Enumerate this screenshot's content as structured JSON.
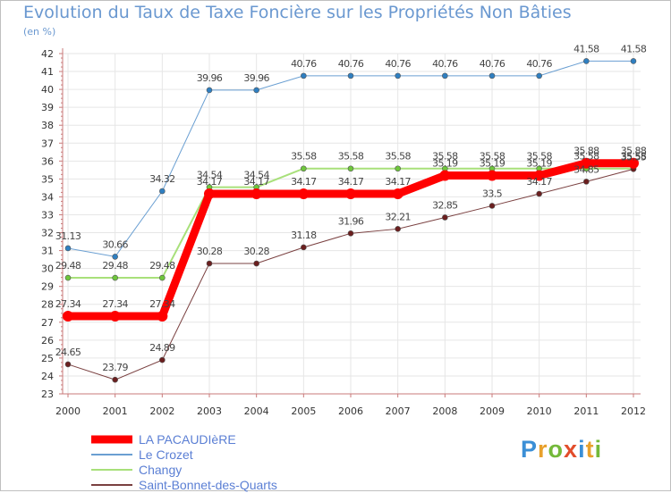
{
  "chart_data": {
    "type": "line",
    "title": "Evolution du Taux de Taxe Foncière sur les Propriétés Non Bâties",
    "ylabel": "(en %)",
    "xlabel": "",
    "categories": [
      "2000",
      "2001",
      "2002",
      "2003",
      "2004",
      "2005",
      "2006",
      "2007",
      "2008",
      "2009",
      "2010",
      "2011",
      "2012"
    ],
    "ylim": [
      23,
      42
    ],
    "yticks": [
      "23",
      "24",
      "25",
      "26",
      "27",
      "28",
      "29",
      "30",
      "31",
      "32",
      "33",
      "34",
      "35",
      "36",
      "37",
      "38",
      "39",
      "40",
      "41",
      "42"
    ],
    "grid": true,
    "series": [
      {
        "name": "Le Crozet",
        "color": "#6a9fd2",
        "marker": "#2f7fc1",
        "width": 1,
        "values": [
          31.13,
          30.66,
          34.32,
          39.96,
          39.96,
          40.76,
          40.76,
          40.76,
          40.76,
          40.76,
          40.76,
          41.58,
          41.58
        ],
        "labels": [
          "31.13",
          "30.66",
          "34.32",
          "39.96",
          "39.96",
          "40.76",
          "40.76",
          "40.76",
          "40.76",
          "40.76",
          "40.76",
          "41.58",
          "41.58"
        ]
      },
      {
        "name": "Changy",
        "color": "#a8e07a",
        "marker": "#6ec63c",
        "width": 2,
        "values": [
          29.48,
          29.48,
          29.48,
          34.54,
          34.54,
          35.58,
          35.58,
          35.58,
          35.58,
          35.58,
          35.58,
          35.58,
          35.58
        ],
        "labels": [
          "29.48",
          "29.48",
          "29.48",
          "34.54",
          "34.54",
          "35.58",
          "35.58",
          "35.58",
          "35.58",
          "35.58",
          "35.58",
          "35.58",
          "35.58"
        ]
      },
      {
        "name": "Saint-Bonnet-des-Quarts",
        "color": "#7a4040",
        "marker": "#6b1f1f",
        "width": 1,
        "values": [
          24.65,
          23.79,
          24.89,
          30.28,
          30.28,
          31.18,
          31.96,
          32.21,
          32.85,
          33.5,
          34.17,
          34.85,
          35.55
        ],
        "labels": [
          "24.65",
          "23.79",
          "24.89",
          "30.28",
          "30.28",
          "31.18",
          "31.96",
          "32.21",
          "32.85",
          "33.5",
          "34.17",
          "34.85",
          "35.55"
        ]
      },
      {
        "name": "LA PACAUDIèRE",
        "color": "#ff0000",
        "marker": "#ff0000",
        "width": 9,
        "values": [
          27.34,
          27.34,
          27.34,
          34.17,
          34.17,
          34.17,
          34.17,
          34.17,
          35.19,
          35.19,
          35.19,
          35.88,
          35.88
        ],
        "labels": [
          "27.34",
          "27.34",
          "27.34",
          "34.17",
          "34.17",
          "34.17",
          "34.17",
          "34.17",
          "35.19",
          "35.19",
          "35.19",
          "35.88",
          "35.88"
        ]
      }
    ],
    "legend": [
      "LA PACAUDIèRE",
      "Le Crozet",
      "Changy",
      "Saint-Bonnet-des-Quarts"
    ],
    "legend_position": "bottom-left"
  },
  "brand": {
    "logo_letters": [
      "P",
      "r",
      "o",
      "x",
      "i",
      "t",
      "i"
    ],
    "logo_colors": [
      "#3b8fd6",
      "#e8a12c",
      "#74b93a",
      "#e24d2b",
      "#3b8fd6",
      "#e8a12c",
      "#74b93a"
    ]
  }
}
